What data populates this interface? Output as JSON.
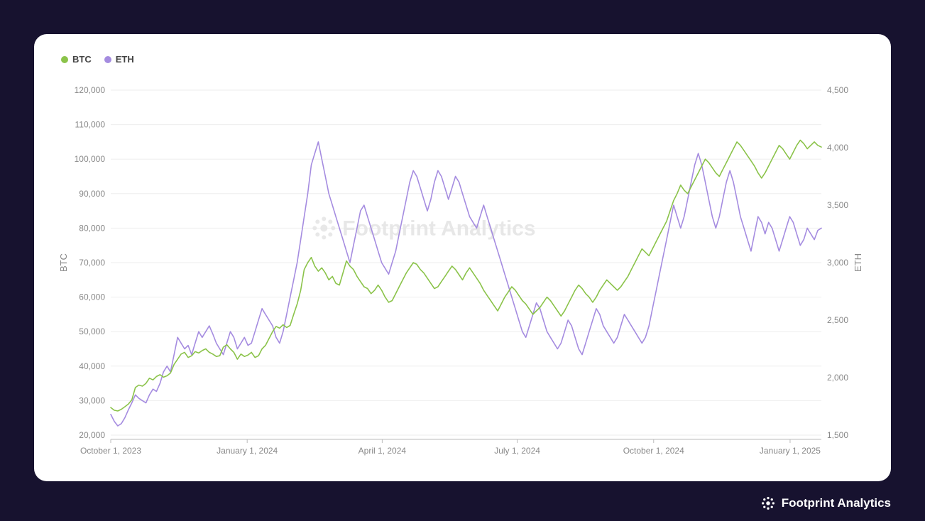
{
  "background_color": "#17122f",
  "card_background": "#ffffff",
  "brand": {
    "name": "Footprint Analytics",
    "icon_color": "#ffffff"
  },
  "watermark": {
    "text": "Footprint Analytics",
    "color": "#e5e5e5",
    "fontsize": 30
  },
  "chart": {
    "type": "line-dual-axis",
    "legend": [
      {
        "label": "BTC",
        "color": "#8bc34a"
      },
      {
        "label": "ETH",
        "color": "#a58ce0"
      }
    ],
    "left_axis": {
      "title": "BTC",
      "min": 20000,
      "max": 120000,
      "tick_step": 10000,
      "tick_labels": [
        "20,000",
        "30,000",
        "40,000",
        "50,000",
        "60,000",
        "70,000",
        "80,000",
        "90,000",
        "100,000",
        "110,000",
        "120,000"
      ],
      "title_fontsize": 13,
      "tick_fontsize": 12,
      "text_color": "#888888"
    },
    "right_axis": {
      "title": "ETH",
      "min": 1500,
      "max": 4500,
      "tick_step": 500,
      "tick_labels": [
        "1,500",
        "2,000",
        "2,500",
        "3,000",
        "3,500",
        "4,000",
        "4,500"
      ],
      "title_fontsize": 13,
      "tick_fontsize": 12,
      "text_color": "#888888"
    },
    "x_axis": {
      "labels": [
        "October 1, 2023",
        "January 1, 2024",
        "April 1, 2024",
        "July 1, 2024",
        "October 1, 2024",
        "January 1, 2025"
      ],
      "positions": [
        0,
        0.192,
        0.382,
        0.572,
        0.764,
        0.956
      ],
      "tick_fontsize": 12,
      "text_color": "#888888"
    },
    "grid_color": "#eeeeee",
    "axis_line_color": "#bbbbbb",
    "line_width": 1.6,
    "series": {
      "BTC": {
        "color": "#8bc34a",
        "axis": "left",
        "values": [
          28000,
          27200,
          27000,
          27500,
          28200,
          29000,
          30200,
          33800,
          34500,
          34200,
          35000,
          36500,
          36000,
          37000,
          37500,
          36800,
          37200,
          38000,
          40500,
          42000,
          43500,
          44000,
          42500,
          43000,
          44200,
          43800,
          44500,
          45000,
          44000,
          43500,
          42800,
          43000,
          45500,
          46200,
          45000,
          44000,
          42000,
          43500,
          42800,
          43200,
          44000,
          42500,
          43000,
          45000,
          46000,
          48000,
          50000,
          51500,
          51000,
          52000,
          51200,
          51800,
          55000,
          58000,
          62000,
          68000,
          70000,
          71500,
          69000,
          67500,
          68500,
          67000,
          65000,
          66000,
          64000,
          63500,
          67000,
          70500,
          69000,
          68000,
          66000,
          64500,
          63000,
          62500,
          61000,
          62000,
          63500,
          62000,
          60000,
          58500,
          59000,
          61000,
          63000,
          65000,
          67000,
          68500,
          70000,
          69500,
          68000,
          67000,
          65500,
          64000,
          62500,
          63000,
          64500,
          66000,
          67500,
          69000,
          68000,
          66500,
          65000,
          67000,
          68500,
          67000,
          65500,
          64000,
          62000,
          60500,
          59000,
          57500,
          56000,
          58000,
          60000,
          61500,
          63000,
          62000,
          60500,
          59000,
          58000,
          56500,
          55000,
          56000,
          57000,
          58500,
          60000,
          59000,
          57500,
          56000,
          54500,
          56000,
          58000,
          60000,
          62000,
          63500,
          62500,
          61000,
          60000,
          58500,
          60000,
          62000,
          63500,
          65000,
          64000,
          63000,
          62000,
          63000,
          64500,
          66000,
          68000,
          70000,
          72000,
          74000,
          73000,
          72000,
          74000,
          76000,
          78000,
          80000,
          82000,
          85000,
          88000,
          90000,
          92500,
          91000,
          90000,
          92000,
          94000,
          96000,
          98000,
          100000,
          99000,
          97500,
          96000,
          95000,
          97000,
          99000,
          101000,
          103000,
          105000,
          104000,
          102500,
          101000,
          99500,
          98000,
          96000,
          94500,
          96000,
          98000,
          100000,
          102000,
          104000,
          103000,
          101500,
          100000,
          102000,
          104000,
          105500,
          104500,
          103000,
          104000,
          105000,
          104000,
          103500
        ]
      },
      "ETH": {
        "color": "#a58ce0",
        "axis": "right",
        "values": [
          1680,
          1620,
          1580,
          1600,
          1650,
          1720,
          1780,
          1850,
          1820,
          1800,
          1780,
          1850,
          1900,
          1880,
          1950,
          2050,
          2100,
          2050,
          2200,
          2350,
          2300,
          2250,
          2280,
          2200,
          2300,
          2400,
          2350,
          2400,
          2450,
          2380,
          2300,
          2250,
          2200,
          2300,
          2400,
          2350,
          2250,
          2300,
          2350,
          2280,
          2300,
          2400,
          2500,
          2600,
          2550,
          2500,
          2450,
          2350,
          2300,
          2400,
          2550,
          2700,
          2850,
          3000,
          3200,
          3400,
          3600,
          3850,
          3950,
          4050,
          3900,
          3750,
          3600,
          3500,
          3400,
          3300,
          3200,
          3100,
          3000,
          3150,
          3300,
          3450,
          3500,
          3400,
          3300,
          3200,
          3100,
          3000,
          2950,
          2900,
          3000,
          3100,
          3250,
          3400,
          3550,
          3700,
          3800,
          3750,
          3650,
          3550,
          3450,
          3550,
          3700,
          3800,
          3750,
          3650,
          3550,
          3650,
          3750,
          3700,
          3600,
          3500,
          3400,
          3350,
          3300,
          3400,
          3500,
          3400,
          3300,
          3200,
          3100,
          3000,
          2900,
          2800,
          2700,
          2600,
          2500,
          2400,
          2350,
          2450,
          2550,
          2650,
          2600,
          2500,
          2400,
          2350,
          2300,
          2250,
          2300,
          2400,
          2500,
          2450,
          2350,
          2250,
          2200,
          2300,
          2400,
          2500,
          2600,
          2550,
          2450,
          2400,
          2350,
          2300,
          2350,
          2450,
          2550,
          2500,
          2450,
          2400,
          2350,
          2300,
          2350,
          2450,
          2600,
          2750,
          2900,
          3050,
          3200,
          3350,
          3500,
          3400,
          3300,
          3400,
          3550,
          3700,
          3850,
          3950,
          3850,
          3700,
          3550,
          3400,
          3300,
          3400,
          3550,
          3700,
          3800,
          3700,
          3550,
          3400,
          3300,
          3200,
          3100,
          3250,
          3400,
          3350,
          3250,
          3350,
          3300,
          3200,
          3100,
          3200,
          3300,
          3400,
          3350,
          3250,
          3150,
          3200,
          3300,
          3250,
          3200,
          3280,
          3300
        ]
      }
    }
  }
}
